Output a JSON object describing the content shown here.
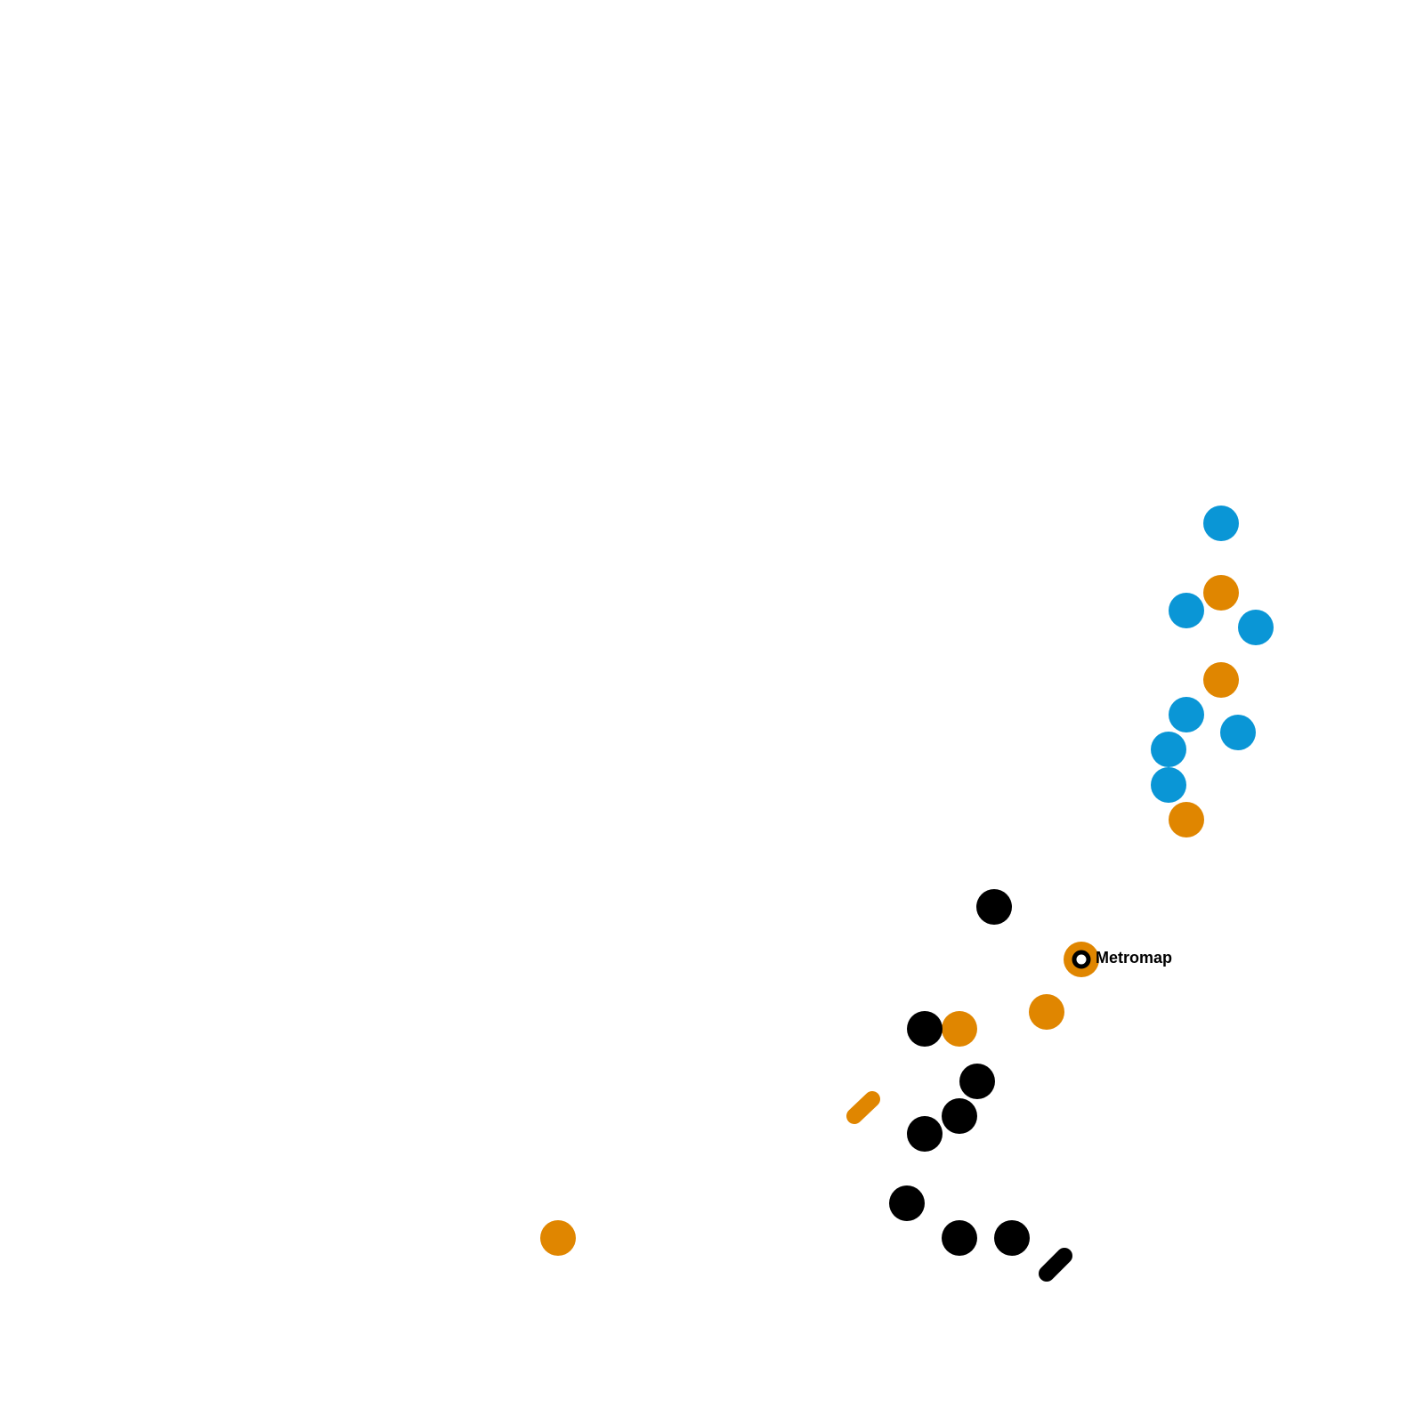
{
  "station": {
    "label": "Metromap"
  }
}
